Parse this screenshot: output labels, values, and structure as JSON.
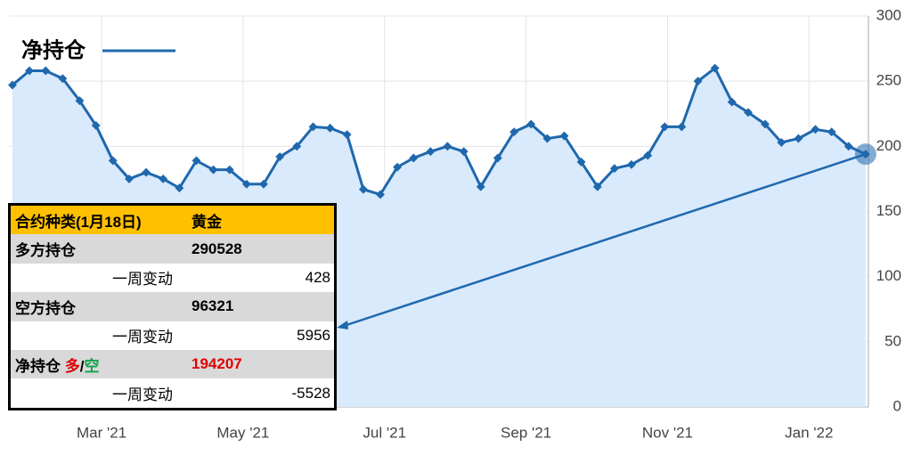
{
  "chart_data": {
    "type": "line",
    "x": [
      0.74,
      0.98,
      1.21,
      1.45,
      1.69,
      1.92,
      2.16,
      2.39,
      2.63,
      2.87,
      3.1,
      3.34,
      3.58,
      3.81,
      4.05,
      4.29,
      4.52,
      4.76,
      4.99,
      5.23,
      5.47,
      5.7,
      5.94,
      6.18,
      6.41,
      6.65,
      6.89,
      7.12,
      7.36,
      7.6,
      7.83,
      8.07,
      8.3,
      8.54,
      8.78,
      9.01,
      9.25,
      9.49,
      9.72,
      9.96,
      10.2,
      10.43,
      10.67,
      10.91,
      11.14,
      11.38,
      11.61,
      11.85,
      12.09,
      12.32,
      12.56,
      12.8
    ],
    "series": [
      {
        "name": "净持仓",
        "color": "#1f68ad",
        "fill": "#d8eafc",
        "values": [
          247,
          258,
          258,
          252,
          235,
          216,
          189,
          175,
          180,
          175,
          168,
          189,
          182,
          182,
          171,
          171,
          192,
          200,
          215,
          214,
          209,
          167,
          163,
          184,
          191,
          196,
          200,
          196,
          169,
          191,
          211,
          217,
          206,
          208,
          188,
          169,
          183,
          186,
          193,
          215,
          215,
          250,
          260,
          234,
          226,
          217,
          203,
          206,
          213,
          211,
          200,
          194
        ]
      }
    ],
    "xlim": [
      0.69,
      12.84
    ],
    "xticks": [
      {
        "value": 2,
        "label": "Mar '21"
      },
      {
        "value": 4,
        "label": "May '21"
      },
      {
        "value": 6,
        "label": "Jul '21"
      },
      {
        "value": 8,
        "label": "Sep '21"
      },
      {
        "value": 10,
        "label": "Nov '21"
      },
      {
        "value": 12,
        "label": "Jan '22"
      }
    ],
    "ylim": [
      0,
      300
    ],
    "yticks": [
      0,
      50,
      100,
      150,
      200,
      250,
      300
    ],
    "grid": true
  },
  "table": {
    "header": [
      "合约种类(1月18日)",
      "黄金"
    ],
    "rows": [
      [
        "多方持仓",
        "290528"
      ],
      [
        "一周变动",
        "428"
      ],
      [
        "空方持仓",
        "96321"
      ],
      [
        "一周变动",
        "5956"
      ],
      [
        [
          "净持仓 ",
          "多",
          "/",
          "空"
        ],
        "194207"
      ],
      [
        "一周变动",
        "-5528"
      ]
    ]
  }
}
